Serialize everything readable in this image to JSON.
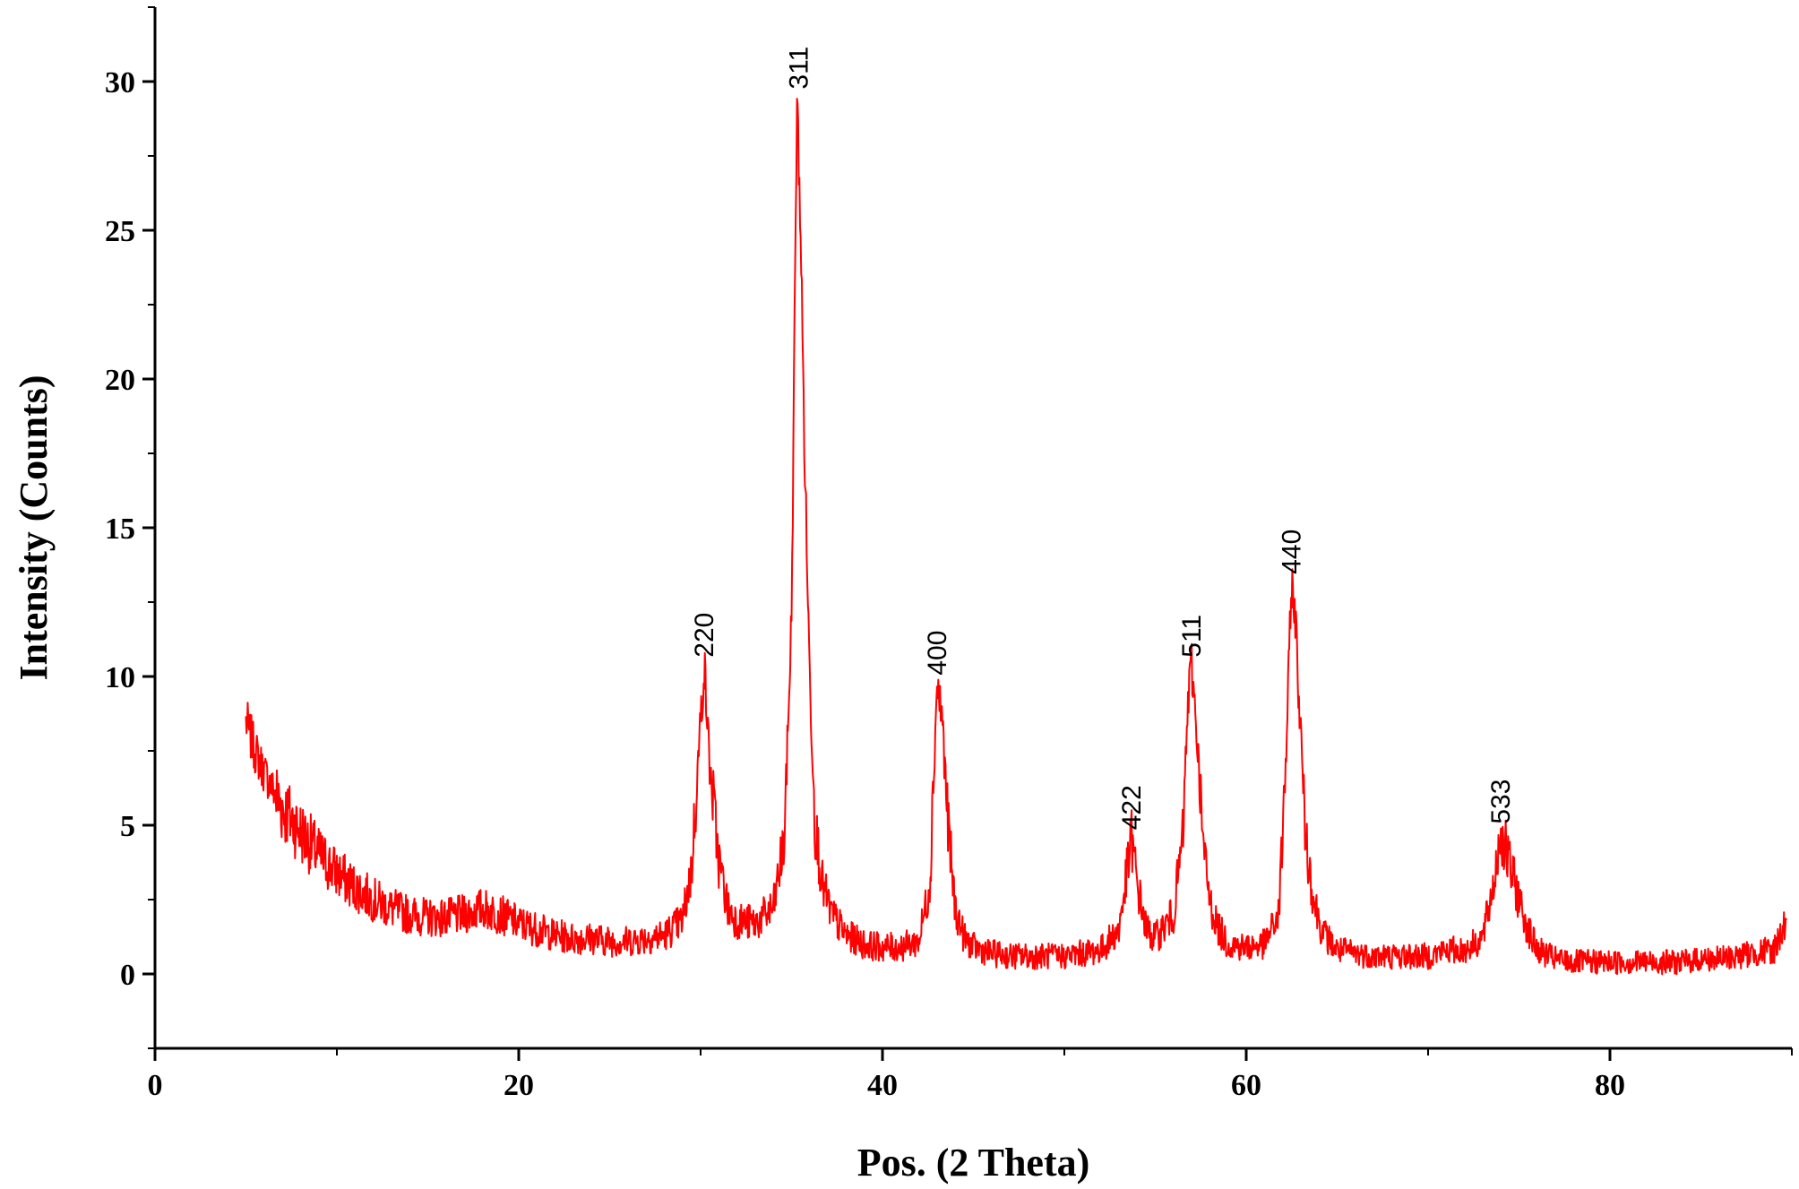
{
  "chart_data": {
    "type": "line",
    "xlabel": "Pos. (2 Theta)",
    "ylabel": "Intensity (Counts)",
    "xlim": [
      0,
      90
    ],
    "ylim": [
      -2.5,
      32.5
    ],
    "x_ticks": [
      0,
      20,
      40,
      60,
      80
    ],
    "y_ticks": [
      0,
      5,
      10,
      15,
      20,
      25,
      30
    ],
    "x_minor_step": 10,
    "y_minor_step": 2.5,
    "grid": false,
    "series": [
      {
        "color": "#ff0000",
        "x": [
          5,
          5.5,
          6,
          6.5,
          7,
          7.5,
          8,
          8.5,
          9,
          10,
          11,
          12,
          13,
          14,
          15,
          16,
          17,
          18,
          19,
          20,
          21,
          22,
          23,
          24,
          25,
          26,
          27,
          28,
          29,
          29.5,
          30,
          30.2,
          30.5,
          31,
          31.5,
          32,
          33,
          34,
          34.6,
          35,
          35.3,
          35.5,
          35.7,
          36,
          36.3,
          36.7,
          37.2,
          38,
          39,
          40,
          41,
          42,
          42.6,
          43,
          43.3,
          43.6,
          44,
          44.5,
          45,
          46,
          47,
          48,
          49,
          50,
          51,
          52,
          53,
          53.4,
          53.7,
          54,
          54.5,
          55,
          56,
          56.5,
          56.8,
          57,
          57.3,
          57.6,
          58,
          58.5,
          59,
          60,
          61,
          61.8,
          62.2,
          62.5,
          62.7,
          63,
          63.3,
          63.7,
          64.2,
          65,
          66,
          67,
          68,
          69,
          70,
          71,
          72,
          73,
          73.6,
          74,
          74.5,
          75,
          75.5,
          76,
          77,
          78,
          79,
          80,
          81,
          82,
          83,
          84,
          85,
          86,
          87,
          88,
          89,
          89.7
        ],
        "y": [
          8.5,
          7.5,
          6.8,
          6.2,
          5.6,
          5.2,
          4.8,
          4.4,
          4.0,
          3.4,
          2.9,
          2.5,
          2.2,
          2.0,
          1.9,
          1.9,
          2.0,
          2.2,
          2.0,
          1.7,
          1.5,
          1.3,
          1.2,
          1.2,
          1.1,
          1.1,
          1.2,
          1.3,
          1.8,
          3.5,
          8.5,
          10.4,
          7.0,
          3.8,
          2.2,
          1.8,
          1.7,
          2.2,
          4.5,
          12.0,
          29.5,
          25.0,
          18.0,
          10.0,
          5.0,
          3.0,
          2.0,
          1.3,
          1.0,
          0.9,
          0.9,
          1.1,
          3.0,
          9.8,
          8.5,
          5.0,
          2.2,
          1.2,
          0.9,
          0.7,
          0.6,
          0.6,
          0.6,
          0.6,
          0.7,
          0.8,
          1.5,
          3.2,
          4.6,
          3.0,
          1.5,
          1.2,
          2.0,
          4.5,
          9.2,
          10.4,
          8.0,
          4.5,
          2.4,
          1.5,
          1.0,
          0.9,
          1.0,
          2.0,
          7.5,
          13.2,
          12.0,
          8.0,
          4.5,
          2.5,
          1.4,
          0.8,
          0.7,
          0.6,
          0.6,
          0.6,
          0.6,
          0.8,
          0.8,
          1.2,
          3.0,
          4.8,
          3.6,
          2.5,
          1.5,
          0.8,
          0.5,
          0.4,
          0.4,
          0.4,
          0.4,
          0.4,
          0.4,
          0.4,
          0.5,
          0.5,
          0.6,
          0.7,
          0.8,
          1.8
        ]
      }
    ],
    "annotations": [
      {
        "text": "220",
        "x": 30.2,
        "y": 10.4
      },
      {
        "text": "311",
        "x": 35.4,
        "y": 29.5
      },
      {
        "text": "400",
        "x": 43.0,
        "y": 9.8
      },
      {
        "text": "422",
        "x": 53.7,
        "y": 4.6
      },
      {
        "text": "511",
        "x": 57.0,
        "y": 10.4
      },
      {
        "text": "440",
        "x": 62.5,
        "y": 13.2
      },
      {
        "text": "533",
        "x": 74.0,
        "y": 4.8
      }
    ]
  }
}
